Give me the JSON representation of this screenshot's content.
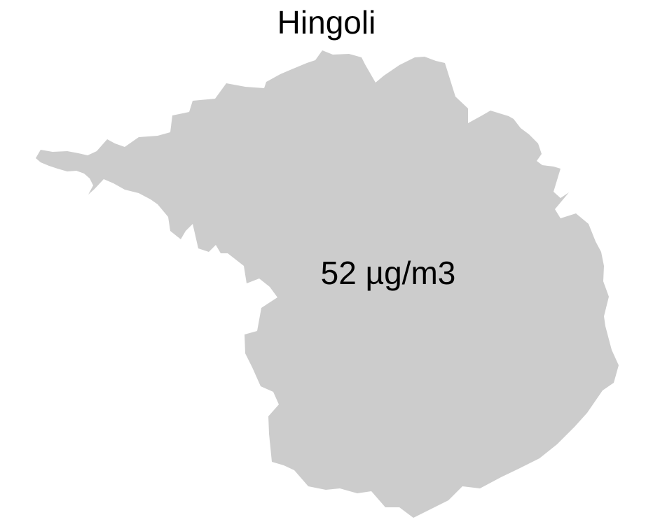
{
  "map": {
    "title": "Hingoli",
    "value_label": "52 µg/m3",
    "region_fill": "#cccccc",
    "background": "#ffffff",
    "text_color": "#000000"
  }
}
